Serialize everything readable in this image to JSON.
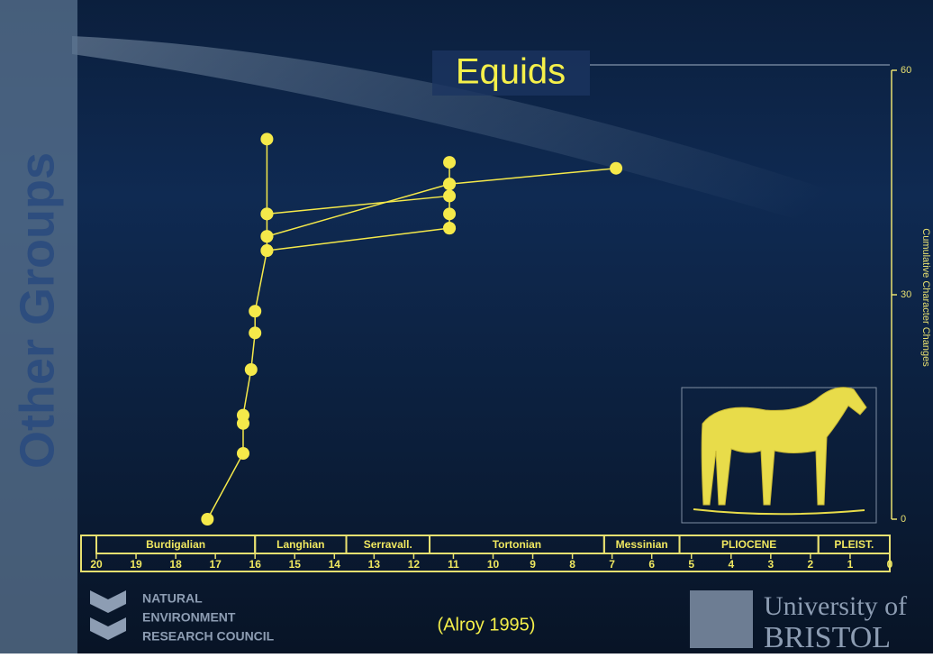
{
  "side_label": "Other Groups",
  "chart_data": {
    "type": "line",
    "title": "Equids",
    "y_label": "Cumulative Character Changes",
    "xlim": [
      20,
      0
    ],
    "xticks": [
      20,
      19,
      18,
      17,
      16,
      15,
      14,
      13,
      12,
      11,
      10,
      9,
      8,
      7,
      6,
      5,
      4,
      3,
      2,
      1,
      0
    ],
    "ylim": [
      0,
      60
    ],
    "yticks": [
      0,
      30,
      60
    ],
    "color": "#f5e94a",
    "series": [
      {
        "x": [
          17.2,
          16.3,
          16.3,
          16.3,
          16.1,
          16.0,
          16.0,
          15.7,
          15.7,
          15.7,
          15.7
        ],
        "values": [
          0,
          8.8,
          12.8,
          13.9,
          20,
          24.9,
          27.8,
          35.9,
          37.8,
          40.8,
          50.8
        ]
      },
      {
        "x": [
          15.7,
          11.1
        ],
        "values": [
          35.9,
          38.9
        ]
      },
      {
        "x": [
          15.7,
          11.1,
          6.9
        ],
        "values": [
          37.8,
          44.8,
          46.9
        ]
      },
      {
        "x": [
          15.7,
          11.1
        ],
        "values": [
          40.8,
          43.2
        ]
      },
      {
        "x": [
          11.1,
          11.1,
          11.1,
          11.1
        ],
        "values": [
          38.9,
          40.8,
          44.8,
          47.7
        ]
      }
    ],
    "stages": [
      {
        "name": "Burdigalian",
        "start": 20,
        "end": 16.0
      },
      {
        "name": "Langhian",
        "start": 16.0,
        "end": 13.7
      },
      {
        "name": "Serravall.",
        "start": 13.7,
        "end": 11.6
      },
      {
        "name": "Tortonian",
        "start": 11.6,
        "end": 7.2
      },
      {
        "name": "Messinian",
        "start": 7.2,
        "end": 5.3
      },
      {
        "name": "PLIOCENE",
        "start": 5.3,
        "end": 1.8
      },
      {
        "name": "PLEIST.",
        "start": 1.8,
        "end": 0
      }
    ]
  },
  "citation": "(Alroy 1995)",
  "logos": {
    "nerc": [
      "NATURAL",
      "ENVIRONMENT",
      "RESEARCH COUNCIL"
    ],
    "university": [
      "University of",
      "BRISTOL"
    ]
  }
}
